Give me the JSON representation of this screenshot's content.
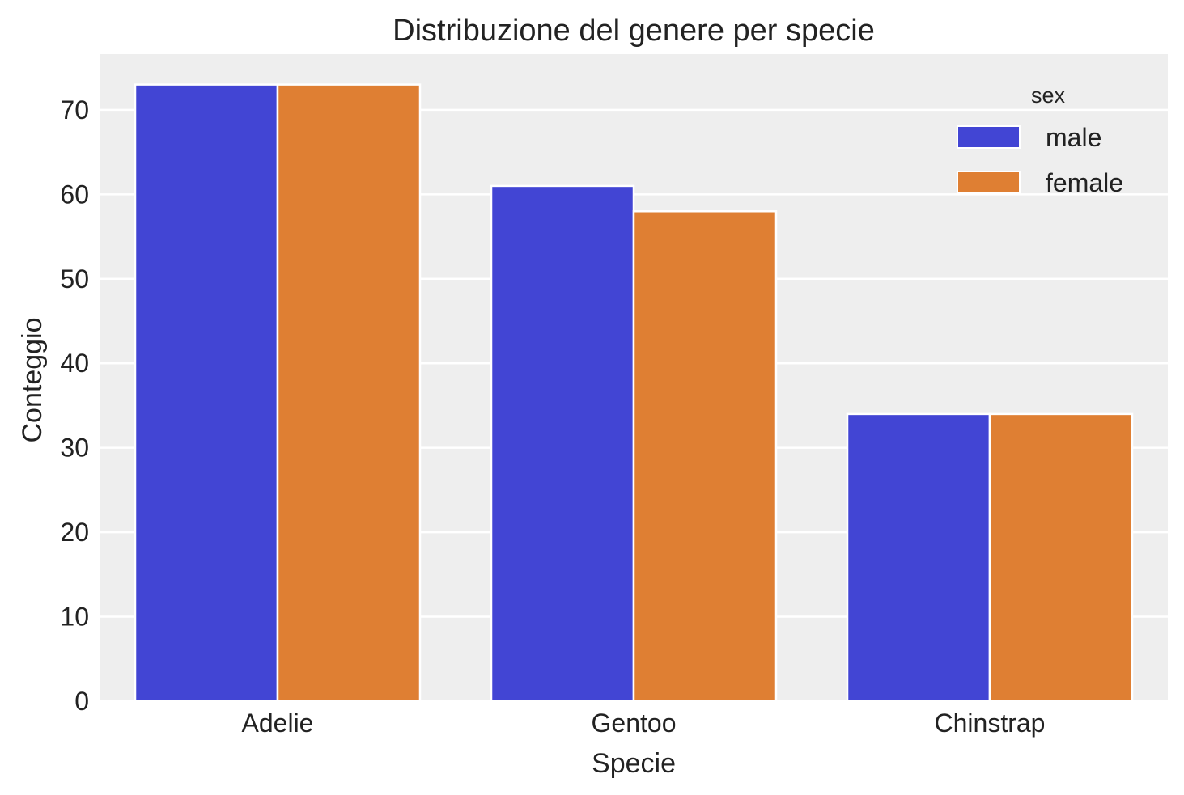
{
  "chart_data": {
    "type": "bar",
    "title": "Distribuzione del genere per specie",
    "xlabel": "Specie",
    "ylabel": "Conteggio",
    "categories": [
      "Adelie",
      "Gentoo",
      "Chinstrap"
    ],
    "series": [
      {
        "name": "male",
        "values": [
          73,
          61,
          34
        ],
        "color": "#4245d4"
      },
      {
        "name": "female",
        "values": [
          73,
          58,
          34
        ],
        "color": "#df7f33"
      }
    ],
    "ylim": [
      0,
      76.6
    ],
    "yticks": [
      0,
      10,
      20,
      30,
      40,
      50,
      60,
      70
    ],
    "grid": true,
    "legend": {
      "title": "sex",
      "placement": "top-right"
    },
    "colors": {
      "plot_background": "#eeeeee",
      "grid": "#ffffff"
    }
  }
}
